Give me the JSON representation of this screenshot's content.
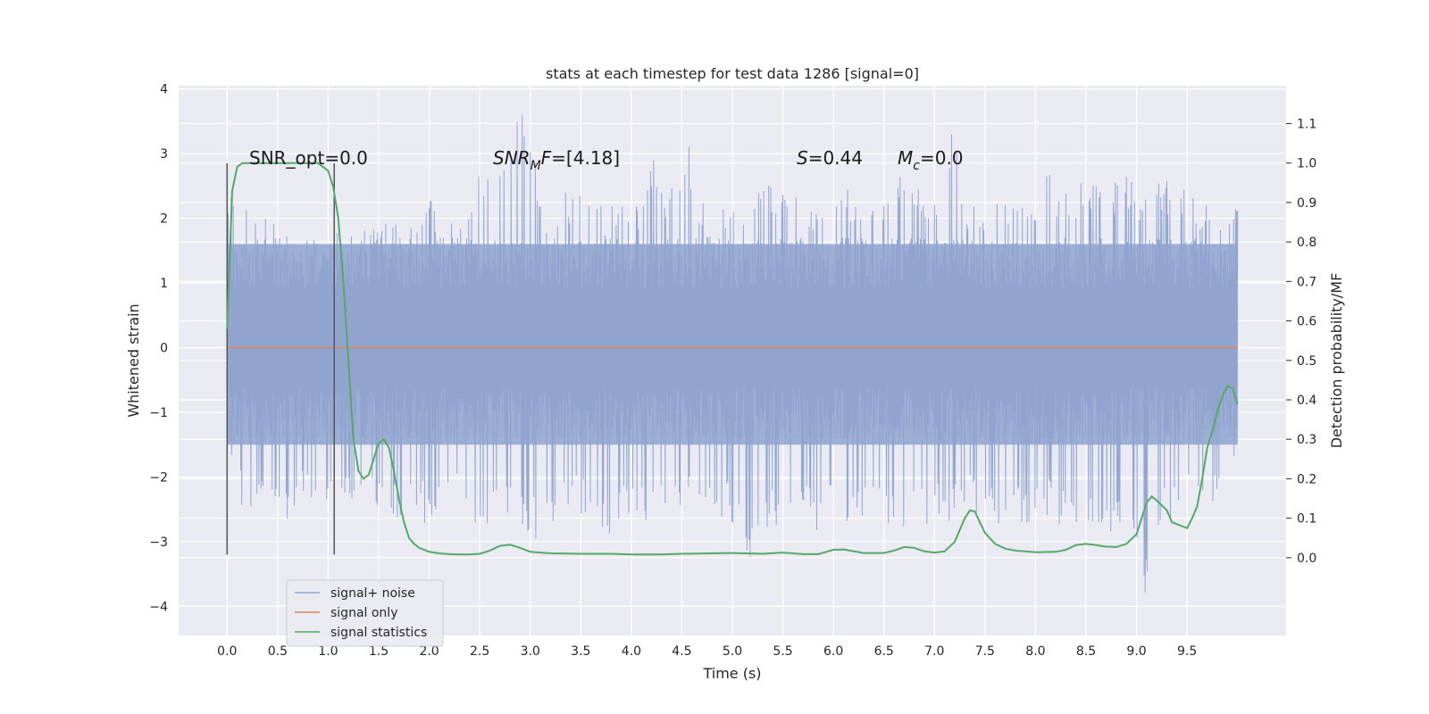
{
  "chart_data": {
    "type": "line",
    "title": "stats at each timestep for test data 1286 [signal=0]",
    "xlabel": "Time (s)",
    "ylabel": "Whitened strain",
    "y2label": "Detection probability/MF",
    "xlim": [
      -0.48,
      10.48
    ],
    "ylim": [
      -4.45,
      4.05
    ],
    "y2lim": [
      -0.197,
      1.196
    ],
    "xticks": [
      "0.0",
      "0.5",
      "1.0",
      "1.5",
      "2.0",
      "2.5",
      "3.0",
      "3.5",
      "4.0",
      "4.5",
      "5.0",
      "5.5",
      "6.0",
      "6.5",
      "7.0",
      "7.5",
      "8.0",
      "8.5",
      "9.0",
      "9.5"
    ],
    "yticks": [
      "−4",
      "−3",
      "−2",
      "−1",
      "0",
      "1",
      "2",
      "3",
      "4"
    ],
    "y2ticks": [
      "0.0",
      "0.1",
      "0.2",
      "0.3",
      "0.4",
      "0.5",
      "0.6",
      "0.7",
      "0.8",
      "0.9",
      "1.0",
      "1.1"
    ],
    "grid": true,
    "legend_position": "lower-left",
    "annotations": {
      "snr_opt": "SNR_opt=0.0",
      "snr_mf_label": "SNR",
      "snr_mf_sub": "M",
      "snr_mf_rest": "F",
      "snr_mf_value": "=[4.18]",
      "s_label": "S",
      "s_value": "=0.44",
      "mc_label": "M",
      "mc_sub": "c",
      "mc_value": "=0.0"
    },
    "vertical_lines_x": [
      0.0,
      1.06
    ],
    "series": [
      {
        "name": "signal+ noise",
        "color": "#8fa3cf",
        "x_range": [
          0,
          10
        ],
        "envelope_high": [
          2.3,
          2.6,
          2.1,
          2.0,
          1.9,
          1.5,
          1.6,
          1.9,
          1.9,
          1.9,
          2.0,
          1.9,
          2.1,
          2.5,
          1.9,
          2.2,
          2.8,
          2.6,
          3.4,
          3.7,
          2.2,
          2.5,
          2.3,
          2.5,
          2.2,
          2.6,
          2.3,
          3.1,
          2.3,
          3.5,
          2.3,
          2.2,
          2.4,
          2.4,
          2.5,
          2.8,
          2.6,
          2.2,
          2.4,
          2.6,
          2.3,
          2.3,
          2.5,
          3.0,
          2.5,
          2.4,
          3.6,
          2.3,
          2.4,
          2.6,
          2.3,
          2.4,
          2.8,
          2.4,
          2.5,
          3.0,
          2.5,
          2.8,
          2.5,
          2.7,
          2.5,
          2.6,
          2.3,
          2.4,
          2.6
        ],
        "envelope_low": [
          -1.3,
          -2.6,
          -2.4,
          -2.5,
          -2.8,
          -2.4,
          -2.6,
          -2.2,
          -2.5,
          -2.5,
          -2.4,
          -2.8,
          -2.7,
          -2.8,
          -2.5,
          -2.4,
          -2.9,
          -2.7,
          -2.8,
          -3.2,
          -2.9,
          -2.6,
          -2.6,
          -2.6,
          -2.9,
          -2.8,
          -2.7,
          -2.7,
          -2.8,
          -2.7,
          -2.5,
          -2.8,
          -2.7,
          -3.3,
          -2.9,
          -2.8,
          -2.7,
          -2.9,
          -2.7,
          -2.8,
          -2.8,
          -2.6,
          -2.9,
          -2.9,
          -2.7,
          -2.8,
          -2.7,
          -2.6,
          -2.7,
          -2.9,
          -2.8,
          -2.9,
          -2.7,
          -2.8,
          -2.9,
          -2.9,
          -3.0,
          -3.2,
          -4.1,
          -2.8,
          -2.7,
          -2.6,
          -2.6,
          -2.5,
          -1.5
        ]
      },
      {
        "name": "signal only",
        "color": "#dd8452",
        "x": [
          0,
          10
        ],
        "y": [
          0,
          0
        ]
      },
      {
        "name": "signal statistics",
        "color": "#55a868",
        "axis": "right",
        "x": [
          0.0,
          0.05,
          0.1,
          0.15,
          0.2,
          0.3,
          0.4,
          0.5,
          0.6,
          0.7,
          0.8,
          0.9,
          0.95,
          1.0,
          1.05,
          1.1,
          1.15,
          1.2,
          1.25,
          1.3,
          1.35,
          1.4,
          1.45,
          1.5,
          1.55,
          1.6,
          1.65,
          1.7,
          1.75,
          1.8,
          1.85,
          1.9,
          2.0,
          2.1,
          2.2,
          2.3,
          2.4,
          2.5,
          2.6,
          2.7,
          2.8,
          2.9,
          3.0,
          3.2,
          3.5,
          3.8,
          4.0,
          4.3,
          4.5,
          4.8,
          5.0,
          5.3,
          5.5,
          5.7,
          5.85,
          6.0,
          6.1,
          6.3,
          6.5,
          6.6,
          6.7,
          6.8,
          6.9,
          7.0,
          7.1,
          7.2,
          7.3,
          7.35,
          7.4,
          7.5,
          7.6,
          7.7,
          7.8,
          8.0,
          8.2,
          8.3,
          8.4,
          8.5,
          8.6,
          8.7,
          8.8,
          8.9,
          9.0,
          9.1,
          9.15,
          9.2,
          9.3,
          9.35,
          9.4,
          9.45,
          9.5,
          9.55,
          9.6,
          9.65,
          9.7,
          9.75,
          9.8,
          9.85,
          9.9,
          9.95,
          10.0
        ],
        "y": [
          0.58,
          0.93,
          0.99,
          1.0,
          1.0,
          1.0,
          1.0,
          1.0,
          1.0,
          1.0,
          1.0,
          1.0,
          0.99,
          0.98,
          0.94,
          0.86,
          0.7,
          0.5,
          0.3,
          0.22,
          0.2,
          0.21,
          0.25,
          0.29,
          0.3,
          0.28,
          0.22,
          0.15,
          0.09,
          0.05,
          0.035,
          0.025,
          0.015,
          0.011,
          0.009,
          0.008,
          0.008,
          0.01,
          0.018,
          0.03,
          0.033,
          0.025,
          0.015,
          0.011,
          0.01,
          0.01,
          0.008,
          0.008,
          0.01,
          0.011,
          0.012,
          0.01,
          0.013,
          0.009,
          0.009,
          0.02,
          0.021,
          0.012,
          0.012,
          0.018,
          0.027,
          0.025,
          0.016,
          0.013,
          0.016,
          0.04,
          0.1,
          0.12,
          0.117,
          0.063,
          0.035,
          0.023,
          0.018,
          0.014,
          0.015,
          0.02,
          0.032,
          0.035,
          0.032,
          0.028,
          0.027,
          0.035,
          0.06,
          0.14,
          0.155,
          0.145,
          0.12,
          0.09,
          0.085,
          0.08,
          0.075,
          0.1,
          0.13,
          0.2,
          0.28,
          0.32,
          0.37,
          0.41,
          0.435,
          0.43,
          0.39
        ]
      }
    ]
  }
}
